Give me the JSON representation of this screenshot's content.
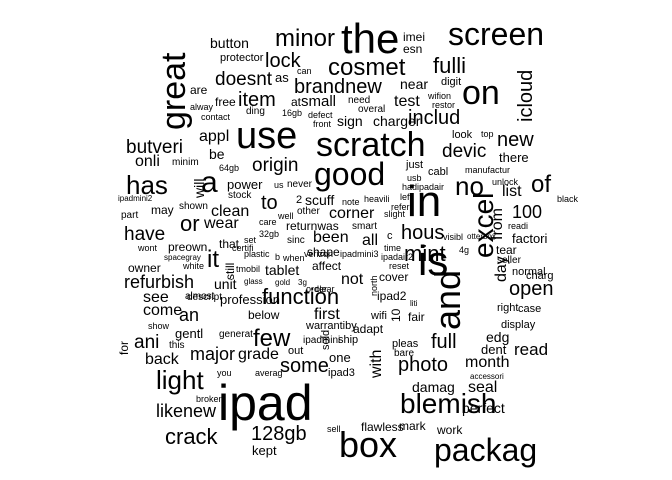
{
  "word_cloud": {
    "text_color": "#000000",
    "background_color": "#ffffff",
    "words": [
      "button",
      "protector",
      "minor",
      "the",
      "imei",
      "esn",
      "screen",
      "great",
      "lock",
      "can",
      "fulli",
      "cosmet",
      "as",
      "doesnt",
      "digit",
      "brandnew",
      "near",
      "on",
      "icloud",
      "wifion",
      "are",
      "free",
      "item",
      "at",
      "small",
      "need",
      "overal",
      "test",
      "restor",
      "alway",
      "contact",
      "ding",
      "16gb",
      "defect",
      "front",
      "sign",
      "charger",
      "includ",
      "appl",
      "use",
      "scratch",
      "look",
      "top",
      "new",
      "butveri",
      "be",
      "minim",
      "devic",
      "there",
      "onli",
      "64gb",
      "origin",
      "will",
      "just",
      "cabl",
      "manufactur",
      "has",
      "a",
      "good",
      "us",
      "never",
      "power",
      "usb",
      "hadipadair",
      "no",
      "unlock",
      "of",
      "list",
      "shown",
      "stock",
      "2",
      "note",
      "heavili",
      "left",
      "black",
      "ipadmini2",
      "may",
      "clean",
      "to",
      "well",
      "other",
      "scuff",
      "refer",
      "slight",
      "excel",
      "100",
      "part",
      "is",
      "or",
      "wear",
      "care",
      "returnwas",
      "corner",
      "smart",
      "from",
      "readi",
      "and",
      "have",
      "that",
      "set",
      "sinc",
      "in",
      "hous",
      "visibl",
      "otterbox",
      "factori",
      "wont",
      "preown",
      "spacegray",
      "32gb",
      "certifi",
      "plastic",
      "been",
      "all",
      "c",
      "time",
      "4g",
      "tear",
      "seller",
      "it",
      "verizon",
      "b",
      "when",
      "shape",
      "ipadmini3",
      "ipadair2",
      "mint",
      "day",
      "owner",
      "white",
      "still",
      "tmobil",
      "tablet",
      "affect",
      "reset",
      "normal",
      "refurbish",
      "unit",
      "glass",
      "gold",
      "3g",
      "not",
      "cover",
      "charg",
      "see",
      "almost",
      "order",
      "clear",
      "liti",
      "function",
      "north",
      "ipad2",
      "open",
      "come",
      "descript",
      "profession",
      "below",
      "first",
      "wifi",
      "right",
      "case",
      "an",
      "10",
      "fair",
      "edg",
      "show",
      "gentl",
      "generat",
      "warrantiby",
      "adapt",
      "display",
      "for",
      "ani",
      "ipadmini",
      "ship",
      "pleas",
      "full",
      "this",
      "few",
      "dent",
      "read",
      "back",
      "major",
      "out",
      "sold",
      "bare",
      "grade",
      "one",
      "with",
      "light",
      "some",
      "photo",
      "month",
      "you",
      "averag",
      "ipad3",
      "accessori",
      "damag",
      "seal",
      "broken",
      "likenew",
      "ipad",
      "blemish",
      "perfect",
      "crack",
      "128gb",
      "sell",
      "flawless",
      "mark",
      "work",
      "box",
      "packag",
      "kept"
    ]
  }
}
